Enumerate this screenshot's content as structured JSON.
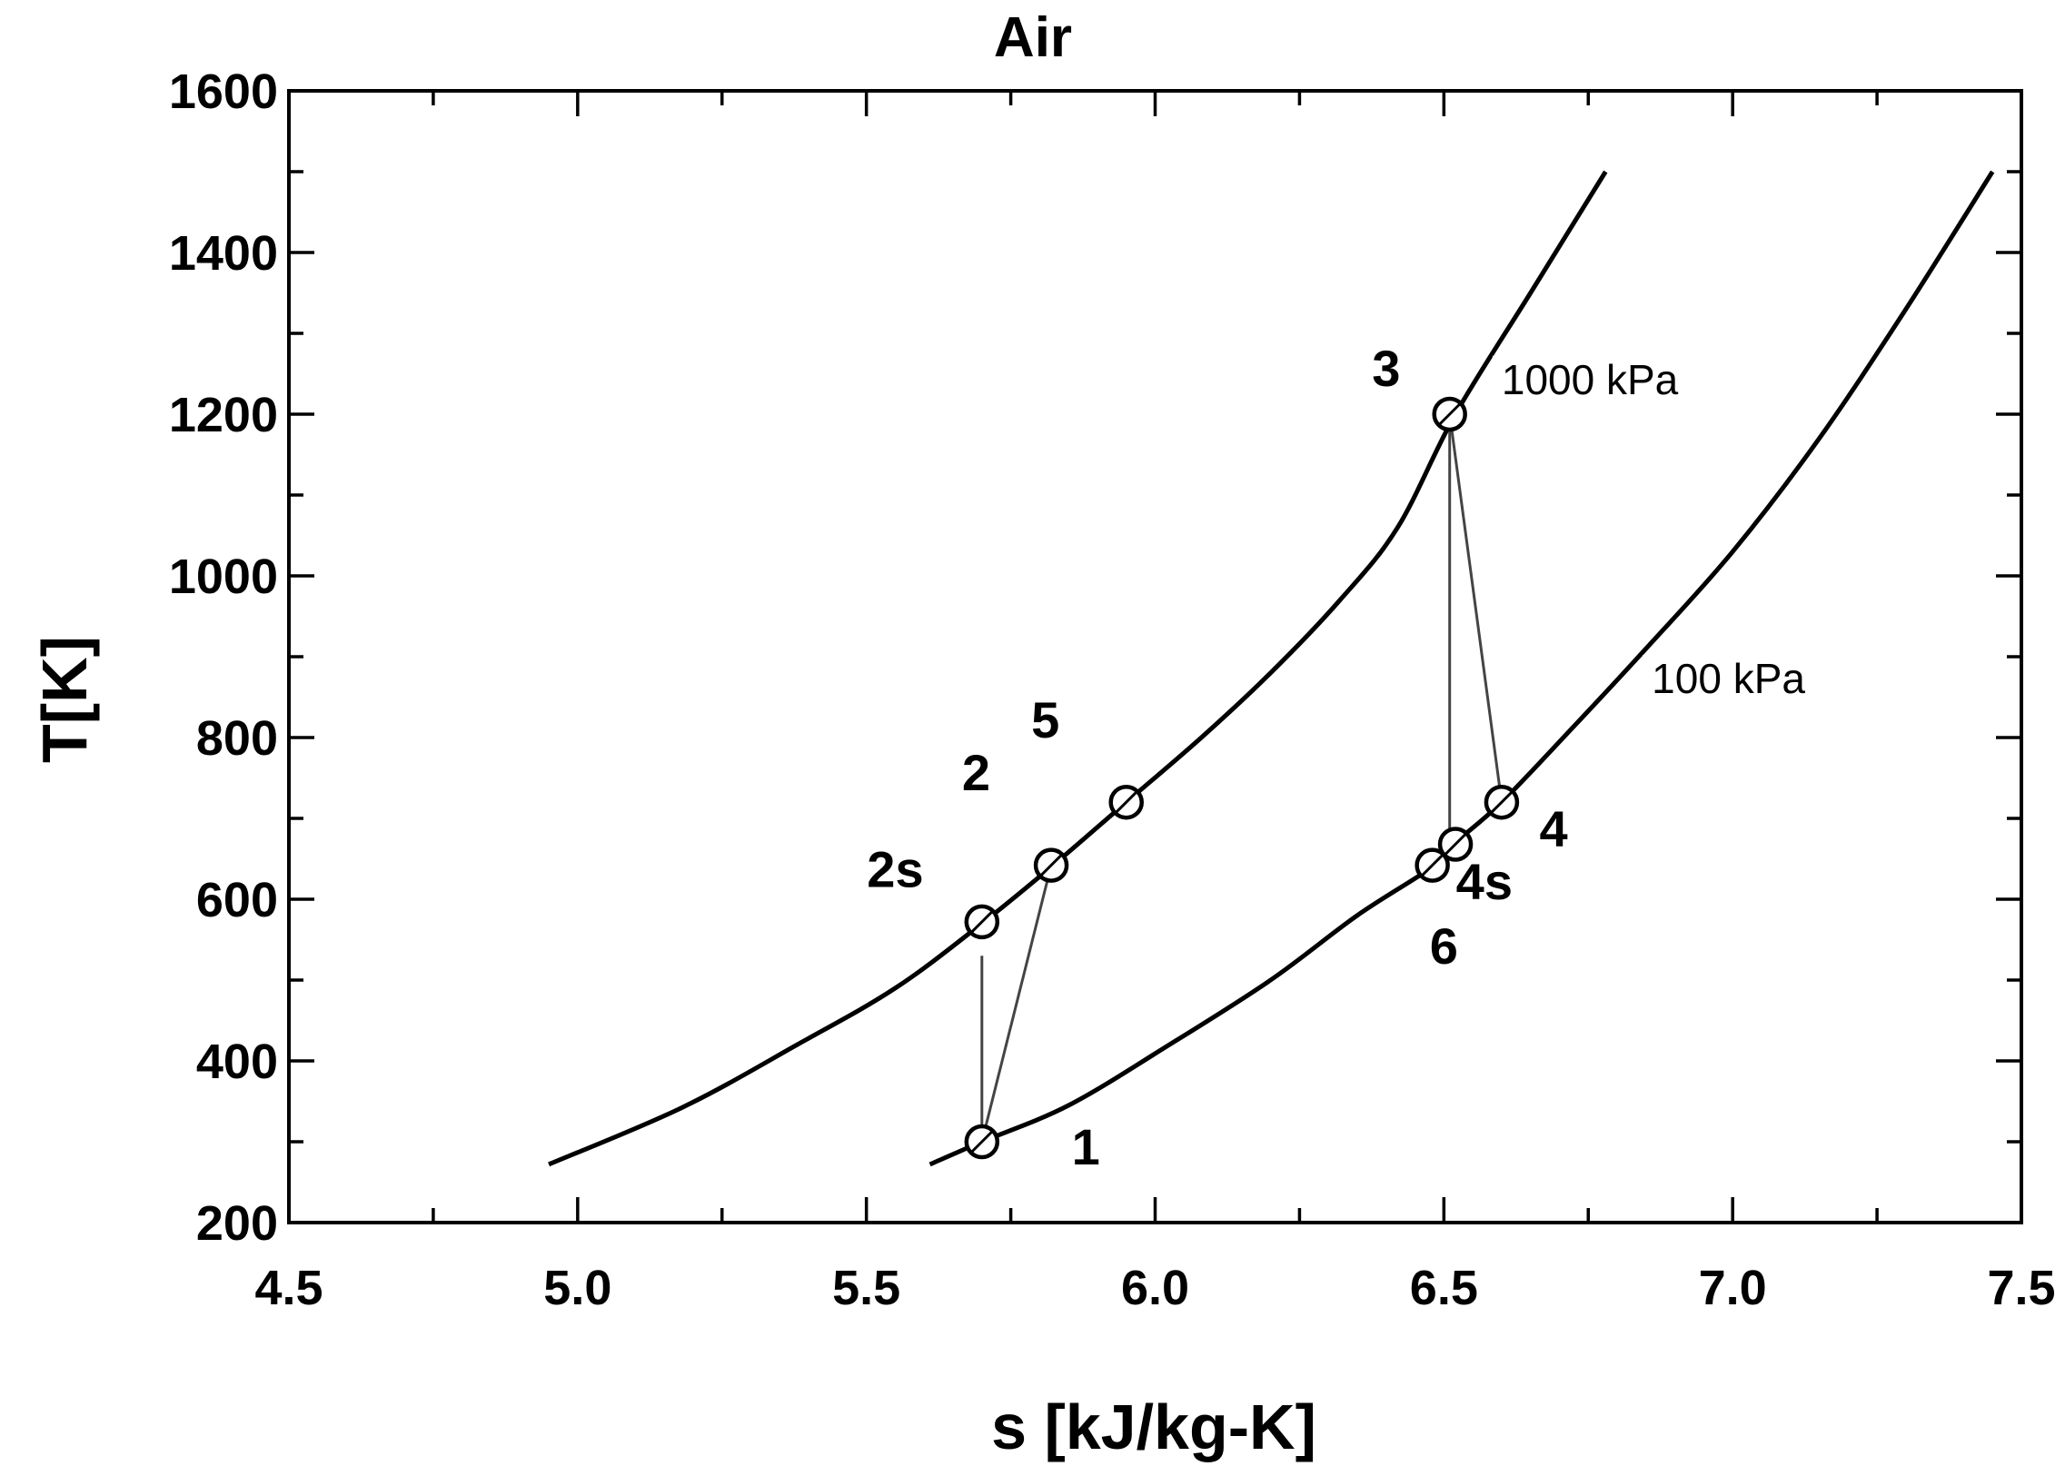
{
  "chart_data": {
    "type": "line",
    "title": "Air",
    "xlabel": "s [kJ/kg-K]",
    "ylabel": "T[K]",
    "xlim": [
      4.5,
      7.5
    ],
    "ylim": [
      200,
      1600
    ],
    "x_ticks": [
      4.5,
      5.0,
      5.5,
      6.0,
      6.5,
      7.0,
      7.5
    ],
    "x_tick_labels": [
      "4.5",
      "5.0",
      "5.5",
      "6.0",
      "6.5",
      "7.0",
      "7.5"
    ],
    "y_ticks": [
      200,
      400,
      600,
      800,
      1000,
      1200,
      1400,
      1600
    ],
    "y_tick_labels": [
      "200",
      "400",
      "600",
      "800",
      "1000",
      "1200",
      "1400",
      "1600"
    ],
    "x_minor_step": 0.25,
    "y_minor_step": 100,
    "grid": false,
    "series": [
      {
        "name": "1000 kPa",
        "points": [
          [
            4.95,
            272
          ],
          [
            5.18,
            342
          ],
          [
            5.38,
            420
          ],
          [
            5.55,
            490
          ],
          [
            5.7,
            570
          ],
          [
            5.82,
            640
          ],
          [
            5.95,
            720
          ],
          [
            6.08,
            800
          ],
          [
            6.2,
            880
          ],
          [
            6.32,
            970
          ],
          [
            6.42,
            1060
          ],
          [
            6.52,
            1200
          ],
          [
            6.65,
            1350
          ],
          [
            6.78,
            1500
          ]
        ]
      },
      {
        "name": "100 kPa",
        "points": [
          [
            5.61,
            272
          ],
          [
            5.7,
            300
          ],
          [
            5.85,
            345
          ],
          [
            6.02,
            418
          ],
          [
            6.2,
            500
          ],
          [
            6.35,
            580
          ],
          [
            6.48,
            640
          ],
          [
            6.52,
            670
          ],
          [
            6.6,
            720
          ],
          [
            6.72,
            810
          ],
          [
            6.85,
            910
          ],
          [
            7.0,
            1030
          ],
          [
            7.15,
            1170
          ],
          [
            7.3,
            1330
          ],
          [
            7.45,
            1500
          ]
        ]
      }
    ],
    "curve_labels": [
      {
        "text": "1000 kPa",
        "s": 6.6,
        "T": 1225
      },
      {
        "text": "100 kPa",
        "s": 6.86,
        "T": 855
      }
    ],
    "state_points": [
      {
        "label": "1",
        "s": 5.7,
        "T": 300
      },
      {
        "label": "2s",
        "s": 5.7,
        "T": 572
      },
      {
        "label": "2",
        "s": 5.82,
        "T": 642
      },
      {
        "label": "5",
        "s": 5.95,
        "T": 720
      },
      {
        "label": "3",
        "s": 6.51,
        "T": 1200
      },
      {
        "label": "4s",
        "s": 6.52,
        "T": 668
      },
      {
        "label": "4",
        "s": 6.6,
        "T": 720
      },
      {
        "label": "6",
        "s": 6.48,
        "T": 642
      }
    ],
    "state_labels": [
      {
        "text": "1",
        "s": 5.88,
        "T": 272
      },
      {
        "text": "2s",
        "s": 5.55,
        "T": 615
      },
      {
        "text": "2",
        "s": 5.69,
        "T": 735
      },
      {
        "text": "5",
        "s": 5.81,
        "T": 800
      },
      {
        "text": "3",
        "s": 6.4,
        "T": 1235
      },
      {
        "text": "4s",
        "s": 6.57,
        "T": 600
      },
      {
        "text": "4",
        "s": 6.69,
        "T": 665
      },
      {
        "text": "6",
        "s": 6.5,
        "T": 520
      }
    ],
    "process_lines": [
      [
        [
          5.7,
          300
        ],
        [
          5.7,
          530
        ]
      ],
      [
        [
          5.7,
          300
        ],
        [
          5.82,
          642
        ]
      ],
      [
        [
          6.51,
          1200
        ],
        [
          6.51,
          668
        ]
      ],
      [
        [
          6.51,
          1200
        ],
        [
          6.6,
          720
        ]
      ]
    ]
  }
}
